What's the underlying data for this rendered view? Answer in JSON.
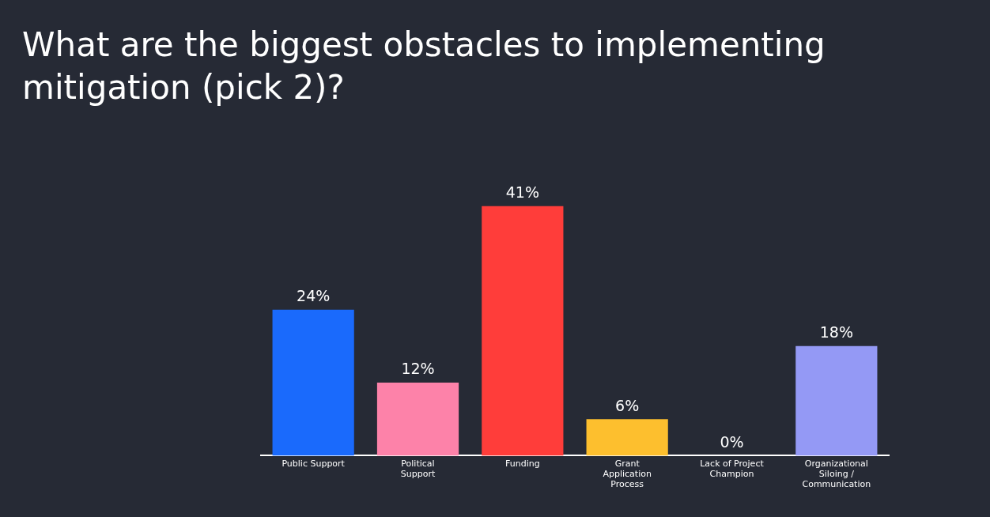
{
  "chart_data": {
    "type": "bar",
    "title": "What are the biggest obstacles to implementing mitigation (pick 2)?",
    "categories": [
      "Public Support",
      "Political Support",
      "Funding",
      "Grant Application Process",
      "Lack of Project Champion",
      "Organizational Siloing / Communication"
    ],
    "values": [
      24,
      12,
      41,
      6,
      0,
      18
    ],
    "colors": [
      "#1a6afc",
      "#fd82a9",
      "#ff3d3a",
      "#fdbf2e",
      "#56c9b0",
      "#9499f5"
    ],
    "value_labels": [
      "24%",
      "12%",
      "41%",
      "6%",
      "0%",
      "18%"
    ],
    "legend": false,
    "grid": false
  }
}
